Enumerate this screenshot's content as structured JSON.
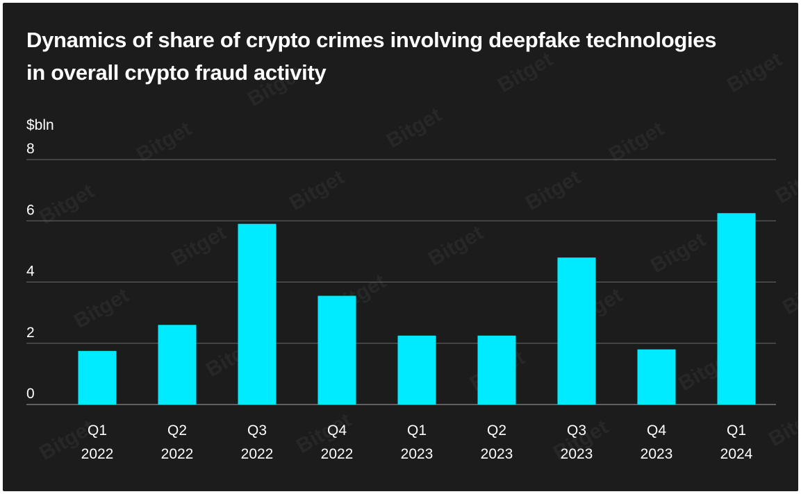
{
  "title": "Dynamics of share of crypto crimes involving deepfake technologies in overall crypto fraud activity",
  "watermark": "Bitget",
  "colors": {
    "background": "#1c1c1c",
    "bar": "#00ebff",
    "text": "#ffffff",
    "grid": "#6a6a6a"
  },
  "chart_data": {
    "type": "bar",
    "title": "Dynamics of share of crypto crimes involving deepfake technologies in overall crypto fraud activity",
    "ylabel": "$bln",
    "xlabel": "",
    "ylim": [
      0,
      8
    ],
    "yticks": [
      0,
      2,
      4,
      6,
      8
    ],
    "grid": true,
    "legend": "none",
    "categories": [
      [
        "Q1",
        "2022"
      ],
      [
        "Q2",
        "2022"
      ],
      [
        "Q3",
        "2022"
      ],
      [
        "Q4",
        "2022"
      ],
      [
        "Q1",
        "2023"
      ],
      [
        "Q2",
        "2023"
      ],
      [
        "Q3",
        "2023"
      ],
      [
        "Q4",
        "2023"
      ],
      [
        "Q1",
        "2024"
      ]
    ],
    "values": [
      1.75,
      2.6,
      5.9,
      3.55,
      2.25,
      2.25,
      4.8,
      1.8,
      6.25
    ]
  }
}
